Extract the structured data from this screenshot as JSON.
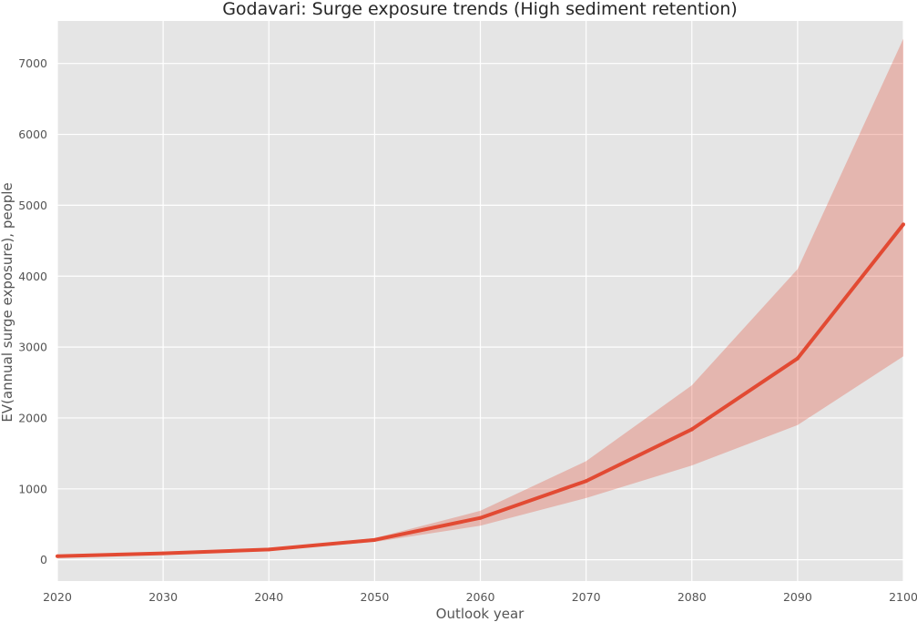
{
  "chart_data": {
    "type": "line",
    "title": "Godavari: Surge exposure trends (High sediment retention)",
    "xlabel": "Outlook year",
    "ylabel": "EV(annual surge exposure), people",
    "xlim": [
      2020,
      2100
    ],
    "ylim": [
      -300,
      7600
    ],
    "grid": true,
    "x_ticks": [
      "2020",
      "2030",
      "2040",
      "2050",
      "2060",
      "2070",
      "2080",
      "2090",
      "2100"
    ],
    "y_ticks": [
      "0",
      "1000",
      "2000",
      "3000",
      "4000",
      "5000",
      "6000",
      "7000"
    ],
    "x": [
      2020,
      2030,
      2040,
      2050,
      2060,
      2070,
      2080,
      2090,
      2100
    ],
    "series": [
      {
        "values": [
          50,
          90,
          145,
          280,
          590,
          1110,
          1840,
          2840,
          4730
        ],
        "band_lower": [
          45,
          82,
          135,
          250,
          480,
          870,
          1330,
          1900,
          2870
        ],
        "band_upper": [
          55,
          98,
          155,
          305,
          690,
          1390,
          2460,
          4100,
          7350
        ],
        "color": "#E24A33"
      }
    ],
    "colors": {
      "background": "#E5E5E5",
      "grid": "#FFFFFF",
      "band": "#E24A33"
    }
  }
}
